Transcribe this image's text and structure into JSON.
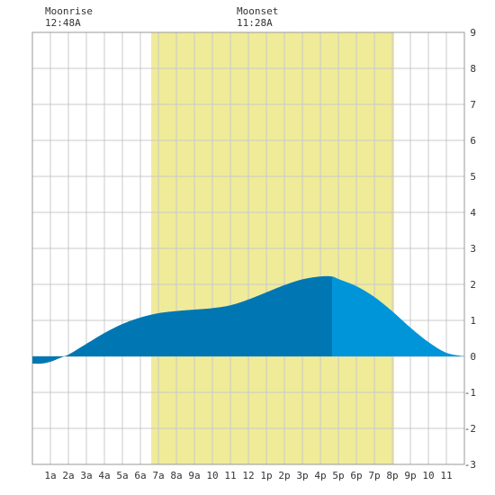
{
  "moon": {
    "moonrise_label": "Moonrise",
    "moonrise_time": "12:48A",
    "moonset_label": "Moonset",
    "moonset_time": "11:28A"
  },
  "colors": {
    "daylight": "#f0eb99",
    "tide_dark": "#0077b3",
    "tide_light": "#0095d9",
    "grid": "#c8c8c8",
    "axis": "#999999"
  },
  "chart_data": {
    "type": "area",
    "title": "",
    "xlabel": "",
    "ylabel": "",
    "xlim": [
      0,
      24
    ],
    "ylim": [
      -3,
      9
    ],
    "x_ticks": [
      {
        "x": 1,
        "label": "1a"
      },
      {
        "x": 2,
        "label": "2a"
      },
      {
        "x": 3,
        "label": "3a"
      },
      {
        "x": 4,
        "label": "4a"
      },
      {
        "x": 5,
        "label": "5a"
      },
      {
        "x": 6,
        "label": "6a"
      },
      {
        "x": 7,
        "label": "7a"
      },
      {
        "x": 8,
        "label": "8a"
      },
      {
        "x": 9,
        "label": "9a"
      },
      {
        "x": 10,
        "label": "10"
      },
      {
        "x": 11,
        "label": "11"
      },
      {
        "x": 12,
        "label": "12"
      },
      {
        "x": 13,
        "label": "1p"
      },
      {
        "x": 14,
        "label": "2p"
      },
      {
        "x": 15,
        "label": "3p"
      },
      {
        "x": 16,
        "label": "4p"
      },
      {
        "x": 17,
        "label": "5p"
      },
      {
        "x": 18,
        "label": "6p"
      },
      {
        "x": 19,
        "label": "7p"
      },
      {
        "x": 20,
        "label": "8p"
      },
      {
        "x": 21,
        "label": "9p"
      },
      {
        "x": 22,
        "label": "10"
      },
      {
        "x": 23,
        "label": "11"
      }
    ],
    "y_ticks": [
      -3,
      -2,
      -1,
      0,
      1,
      2,
      3,
      4,
      5,
      6,
      7,
      8,
      9
    ],
    "daylight": {
      "start": 6.6,
      "end": 20.1
    },
    "tide_split_hour": 16.65,
    "tide_height": {
      "x": [
        0,
        0.5,
        1,
        1.5,
        2,
        3,
        4,
        5,
        6,
        7,
        8,
        9,
        10,
        11,
        12,
        13,
        14,
        15,
        16,
        16.65,
        17,
        18,
        19,
        20,
        21,
        22,
        23,
        24
      ],
      "y": [
        -0.2,
        -0.2,
        -0.15,
        -0.05,
        0.05,
        0.35,
        0.65,
        0.9,
        1.08,
        1.2,
        1.26,
        1.3,
        1.34,
        1.42,
        1.58,
        1.78,
        1.98,
        2.14,
        2.22,
        2.22,
        2.15,
        1.95,
        1.65,
        1.25,
        0.8,
        0.4,
        0.1,
        0.0
      ]
    },
    "grid": true
  }
}
